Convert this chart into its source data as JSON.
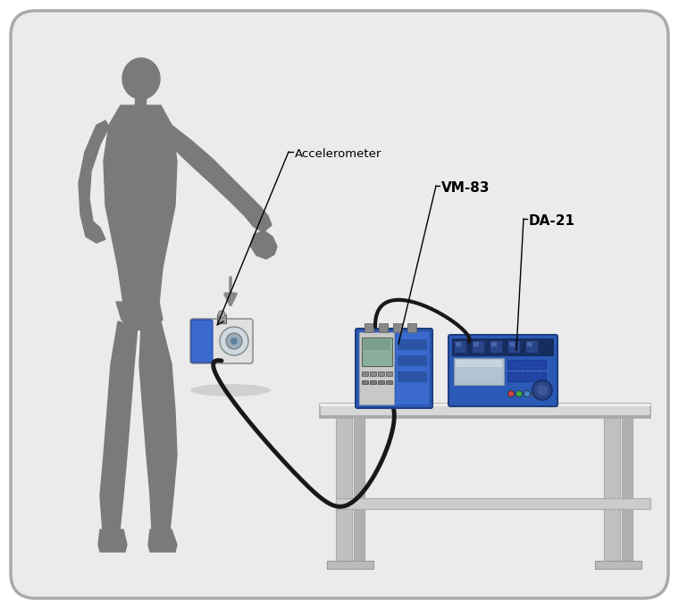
{
  "bg_color": "#ebebeb",
  "border_color": "#aaaaaa",
  "figure_bg": "#ffffff",
  "person_color": "#7a7a7a",
  "arrow_color": "#888888",
  "device_blue_dark": "#1e3f80",
  "device_blue": "#2a5ab5",
  "device_blue_light": "#3a6acc",
  "device_gray": "#cccccc",
  "device_screen_green": "#8ab0a0",
  "device_screen_gray": "#b0c0cc",
  "cable_color": "#181818",
  "label_accelerometer": "Accelerometer",
  "label_vm83": "VM-83",
  "label_da21": "DA-21",
  "table_top_color": "#d8d8d8",
  "table_leg_color": "#c0c0c0",
  "table_leg_dark": "#b0b0b0",
  "shadow_color": "#b0b0b0"
}
